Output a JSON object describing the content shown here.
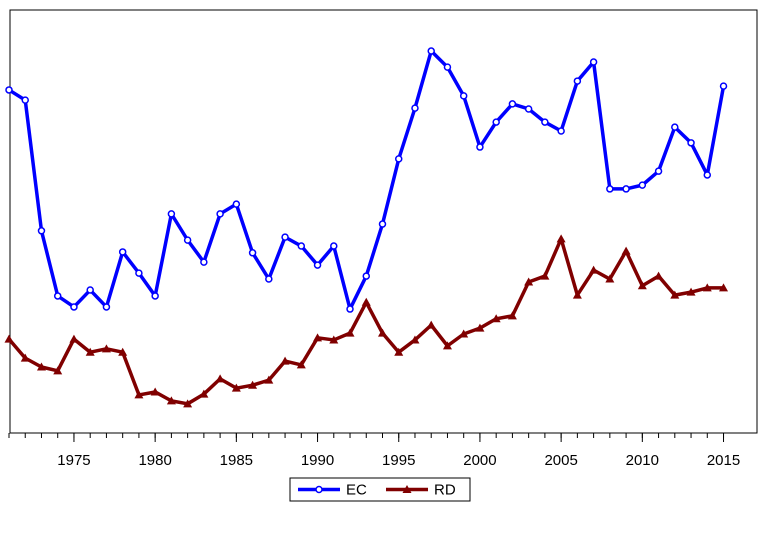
{
  "chart_data": {
    "type": "line",
    "x": [
      1971,
      1972,
      1973,
      1974,
      1975,
      1976,
      1977,
      1978,
      1979,
      1980,
      1981,
      1982,
      1983,
      1984,
      1985,
      1986,
      1987,
      1988,
      1989,
      1990,
      1991,
      1992,
      1993,
      1994,
      1995,
      1996,
      1997,
      1998,
      1999,
      2000,
      2001,
      2002,
      2003,
      2004,
      2005,
      2006,
      2007,
      2008,
      2009,
      2010,
      2011,
      2012,
      2013,
      2014,
      2015
    ],
    "series": [
      {
        "name": "EC",
        "color": "#0000ff",
        "marker": "circle",
        "values": [
          81.1,
          78.7,
          47.8,
          32.4,
          29.8,
          33.8,
          29.8,
          42.8,
          37.8,
          32.4,
          51.8,
          45.6,
          40.4,
          51.8,
          54.1,
          42.6,
          36.4,
          46.3,
          44.2,
          39.7,
          44.2,
          29.3,
          37.1,
          49.4,
          64.8,
          76.8,
          90.3,
          86.5,
          79.7,
          67.6,
          73.5,
          77.8,
          76.6,
          73.5,
          71.4,
          83.2,
          87.7,
          57.7,
          57.7,
          58.6,
          61.9,
          72.3,
          68.6,
          61.0,
          82.0
        ]
      },
      {
        "name": "RD",
        "color": "#800000",
        "marker": "triangle",
        "values": [
          22.2,
          17.7,
          15.6,
          14.7,
          22.2,
          19.1,
          19.9,
          19.1,
          9.0,
          9.7,
          7.6,
          6.9,
          9.2,
          12.8,
          10.6,
          11.3,
          12.5,
          17.0,
          16.1,
          22.5,
          22.0,
          23.6,
          30.9,
          23.6,
          19.1,
          22.0,
          25.5,
          20.6,
          23.4,
          24.8,
          27.0,
          27.7,
          35.7,
          37.1,
          45.9,
          32.6,
          38.5,
          36.4,
          43.0,
          34.8,
          37.1,
          32.6,
          33.3,
          34.3,
          34.3
        ]
      }
    ],
    "xlim": [
      1971,
      2017
    ],
    "xticks": [
      1975,
      1980,
      1985,
      1990,
      1995,
      2000,
      2005,
      2010,
      2015
    ],
    "ylim": [
      0,
      100
    ],
    "legend": "bottom"
  }
}
